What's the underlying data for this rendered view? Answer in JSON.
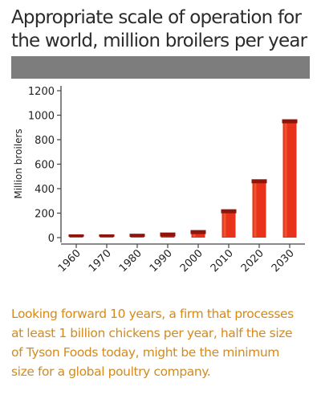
{
  "header": {
    "title_line1": "Appropriate scale of operation for",
    "title_line2": "the world, million broilers per year"
  },
  "caption": {
    "line1": "Looking forward 10 years, a firm that processes",
    "line2": "at least 1 billion chickens per year, half the size",
    "line3": "of Tyson Foods today, might be the minimum",
    "line4": "size for a global poultry company."
  },
  "colors": {
    "bar": "#e8321a",
    "bar_highlight": "#f26a3e",
    "bar_cap": "#8e150c",
    "axis": "#444444",
    "header_band": "#7d7d7d",
    "caption_text": "#d48a1c"
  },
  "chart_data": {
    "type": "bar",
    "categories": [
      "1960",
      "1970",
      "1980",
      "1990",
      "2000",
      "2010",
      "2020",
      "2030"
    ],
    "values": [
      20,
      20,
      25,
      35,
      55,
      225,
      470,
      960
    ],
    "ylabel": "Million broilers",
    "ylim": [
      0,
      1200
    ],
    "yticks": [
      0,
      200,
      400,
      600,
      800,
      1000,
      1200
    ],
    "xlabel": "",
    "grid": false,
    "legend": "none"
  }
}
